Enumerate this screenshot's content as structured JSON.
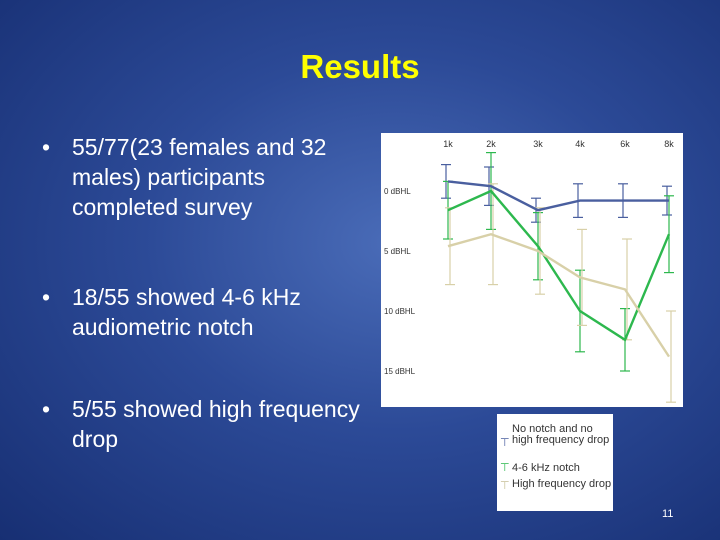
{
  "slide": {
    "title": "Results",
    "bullets": [
      {
        "dot": "•",
        "text": "55/77(23 females and 32 males) participants completed survey"
      },
      {
        "dot": "•",
        "text": "18/55 showed 4-6 kHz audiometric notch"
      },
      {
        "dot": "•",
        "text": "5/55 showed high frequency drop"
      }
    ],
    "page_number": "11"
  },
  "chart_data": {
    "type": "line",
    "categories": [
      "1k",
      "2k",
      "3k",
      "4k",
      "6k",
      "8k"
    ],
    "x_axis_position": "top",
    "y_tick_labels": [
      "0 dBHL",
      "5 dBHL",
      "10 dBHL",
      "15 dBHL"
    ],
    "y_ticks": [
      0,
      5,
      10,
      15
    ],
    "ylim": [
      -3,
      17
    ],
    "y_inverted": true,
    "grid": false,
    "legend_placement": "below-right",
    "series": [
      {
        "name": "No notch and no high frequency drop",
        "color": "#4a5f9f",
        "values": [
          -0.8,
          -0.4,
          1.6,
          0.8,
          0.8,
          0.8
        ],
        "err": [
          1.4,
          1.6,
          1.0,
          1.4,
          1.4,
          1.2
        ]
      },
      {
        "name": "4-6 kHz notch",
        "color": "#2db84e",
        "values": [
          1.6,
          0.0,
          4.6,
          10.0,
          12.4,
          3.6
        ],
        "err": [
          2.4,
          3.2,
          2.8,
          3.4,
          2.6,
          3.2
        ]
      },
      {
        "name": "High frequency drop",
        "color": "#d8d0a8",
        "values": [
          4.6,
          3.6,
          5.0,
          7.2,
          8.2,
          13.8
        ],
        "err": [
          3.2,
          4.2,
          3.6,
          4.0,
          4.2,
          3.8
        ]
      }
    ]
  }
}
